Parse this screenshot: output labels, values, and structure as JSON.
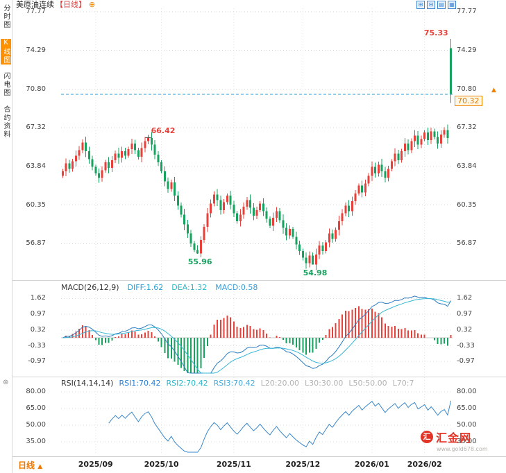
{
  "sidebar": {
    "tabs": [
      {
        "label": "分时图",
        "active": false
      },
      {
        "label": "K线图",
        "active": true
      },
      {
        "label": "闪电图",
        "active": false
      },
      {
        "label": "合约资料",
        "active": false
      }
    ]
  },
  "header": {
    "title": "美原油连续",
    "period_tag": "【日线】",
    "add_icon": "⊕",
    "toolbar": [
      {
        "name": "pan-tool-icon",
        "glyph": "⊞"
      },
      {
        "name": "zoom-tool-icon",
        "glyph": "⊟"
      },
      {
        "name": "chart-style-icon",
        "glyph": "▤"
      },
      {
        "name": "indicator-panel-icon",
        "glyph": "▦"
      }
    ]
  },
  "macd_header": {
    "label": "MACD(26,12,9)",
    "diff_text": "DIFF:1.62",
    "dea_text": "DEA:1.32",
    "macd_text": "MACD:0.58"
  },
  "rsi_header": {
    "label": "RSI(14,14,14)",
    "rsi1_text": "RSI1:70.42",
    "rsi2_text": "RSI2:70.42",
    "rsi3_text": "RSI3:70.42",
    "l20_text": "L20:20.00",
    "l30_text": "L30:30.00",
    "l50_text": "L50:50.00",
    "l70_text": "L70:7"
  },
  "footer": {
    "period_label": "日线",
    "arrow": "▲"
  },
  "watermark": {
    "logo_char": "汇",
    "name": "汇金网",
    "url": "www.gold678.com"
  },
  "icons": {
    "settings": "⊛",
    "up_arrow": "▲"
  },
  "colors": {
    "up": "#e8403a",
    "down": "#17a35f",
    "accent": "#f08200",
    "period_red": "#e03636",
    "dashed": "#2e9bd6",
    "diff_line": "#2b7bbf",
    "dea_line": "#35b7d4",
    "rsi_line": "#3a87c8",
    "grid": "#d4d4d4"
  },
  "chart_data": {
    "type": "candlestick",
    "symbol": "美原油连续",
    "period": "日线",
    "price_axis": {
      "labels": [
        "77.77",
        "74.29",
        "70.80",
        "67.32",
        "63.84",
        "60.35",
        "56.87"
      ]
    },
    "x_axis": {
      "month_ticks": [
        {
          "label": "2025/09",
          "index": 10
        },
        {
          "label": "2025/10",
          "index": 30
        },
        {
          "label": "2025/11",
          "index": 52
        },
        {
          "label": "2025/12",
          "index": 73
        },
        {
          "label": "2026/01",
          "index": 94
        },
        {
          "label": "2026/02",
          "index": 110
        }
      ]
    },
    "candles": {
      "first_open": 63.0,
      "closes": [
        63.4,
        64.1,
        63.6,
        64.3,
        64.8,
        65.3,
        66.0,
        65.2,
        64.5,
        63.8,
        63.2,
        62.8,
        63.5,
        64.2,
        63.7,
        64.4,
        65.0,
        64.6,
        65.2,
        64.8,
        65.4,
        65.9,
        65.3,
        64.7,
        65.5,
        66.1,
        66.4,
        65.8,
        64.9,
        64.2,
        63.4,
        62.5,
        61.8,
        62.4,
        61.2,
        60.3,
        59.5,
        58.6,
        57.8,
        56.9,
        56.3,
        56.0,
        57.2,
        58.4,
        59.6,
        60.5,
        61.3,
        60.8,
        59.9,
        60.6,
        61.2,
        60.4,
        59.6,
        58.9,
        59.5,
        60.2,
        60.8,
        60.1,
        59.4,
        59.9,
        60.5,
        59.8,
        59.1,
        58.5,
        59.2,
        59.8,
        59.0,
        58.3,
        57.6,
        58.2,
        57.5,
        56.8,
        56.2,
        55.6,
        55.1,
        55.8,
        55.0,
        55.9,
        56.7,
        56.2,
        57.0,
        57.8,
        57.3,
        58.1,
        58.9,
        59.6,
        60.3,
        59.8,
        60.7,
        61.4,
        62.1,
        61.5,
        62.3,
        63.0,
        63.8,
        63.2,
        64.0,
        63.4,
        62.8,
        63.6,
        64.3,
        65.0,
        64.4,
        65.2,
        65.9,
        65.3,
        66.1,
        66.6,
        65.8,
        66.3,
        66.9,
        66.2,
        67.0,
        66.5,
        65.9,
        66.7,
        67.1,
        66.4,
        70.32
      ],
      "overrides": {
        "26": {
          "h": 66.42
        },
        "41": {
          "l": 55.96
        },
        "76": {
          "l": 54.98
        },
        "118": {
          "o": 74.5,
          "h": 75.33,
          "l": 69.55,
          "c": 70.32
        }
      }
    },
    "key_points": {
      "spike_high": {
        "index": 118,
        "price": 75.33
      },
      "swing_high": {
        "index": 26,
        "price": 66.42
      },
      "october_low": {
        "index": 41,
        "price": 55.96
      },
      "december_low": {
        "index": 76,
        "price": 54.98
      },
      "last_price": 70.32
    },
    "macd_panel": {
      "params": [
        26,
        12,
        9
      ],
      "axis_labels": [
        "1.62",
        "0.97",
        "0.32",
        "-0.33",
        "-0.97"
      ],
      "diff": 1.62,
      "dea": 1.32,
      "macd": 0.58
    },
    "rsi_panel": {
      "params": [
        14,
        14,
        14
      ],
      "axis_labels": [
        "80.00",
        "65.00",
        "50.00",
        "35.00"
      ],
      "rsi1": 70.42,
      "rsi2": 70.42,
      "rsi3": 70.42,
      "levels": {
        "l20": 20.0,
        "l30": 30.0,
        "l50": 50.0
      }
    }
  }
}
